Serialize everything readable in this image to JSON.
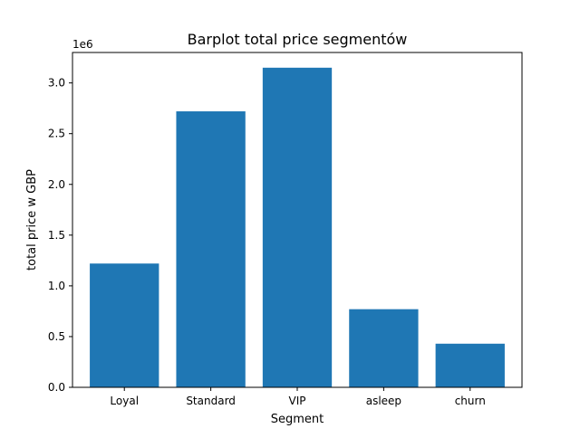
{
  "chart_data": {
    "type": "bar",
    "title": "Barplot total price segmentów",
    "xlabel": "Segment",
    "ylabel": "total price w GBP",
    "y_offset_label": "1e6",
    "categories": [
      "Loyal",
      "Standard",
      "VIP",
      "asleep",
      "churn"
    ],
    "values": [
      1220000,
      2720000,
      3150000,
      770000,
      430000
    ],
    "ylim": [
      0,
      3300000
    ],
    "y_ticks": [
      0,
      500000,
      1000000,
      1500000,
      2000000,
      2500000,
      3000000
    ],
    "y_tick_labels": [
      "0.0",
      "0.5",
      "1.0",
      "1.5",
      "2.0",
      "2.5",
      "3.0"
    ],
    "grid": false,
    "bar_color": "#1f77b4"
  }
}
